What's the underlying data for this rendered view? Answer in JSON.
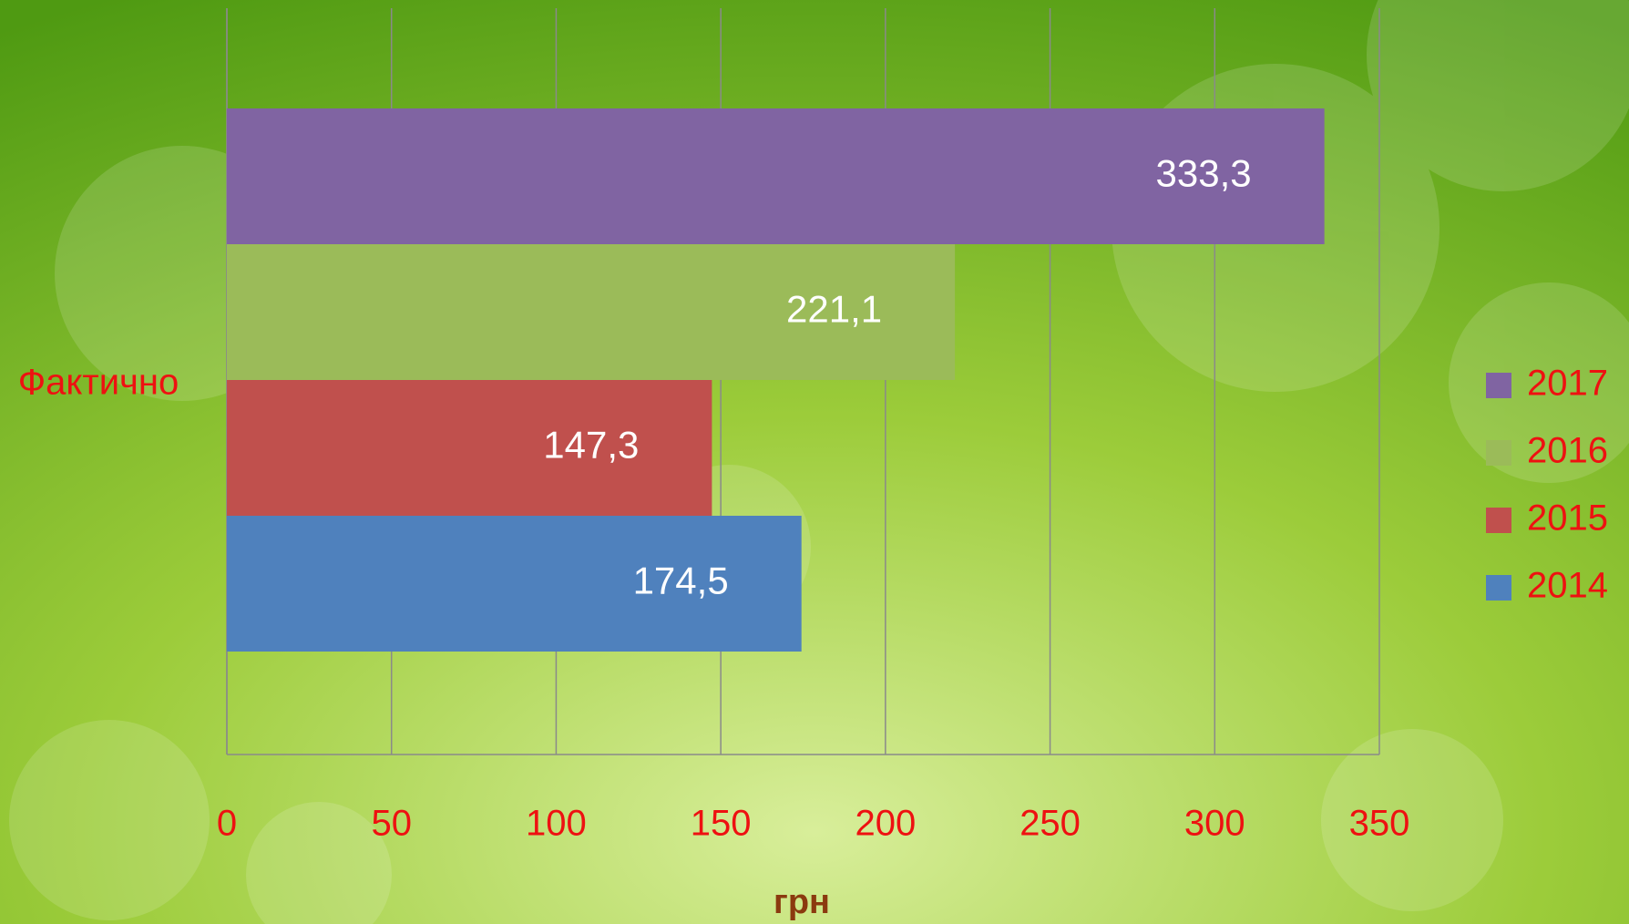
{
  "chart_data": {
    "type": "bar",
    "orientation": "horizontal",
    "categories": [
      "Фактично"
    ],
    "series": [
      {
        "name": "2014",
        "color": "#4f81bd",
        "values": [
          174.5
        ],
        "value_labels": [
          "174,5"
        ]
      },
      {
        "name": "2015",
        "color": "#c0504d",
        "values": [
          147.3
        ],
        "value_labels": [
          "147,3"
        ]
      },
      {
        "name": "2016",
        "color": "#9bbb59",
        "values": [
          221.1
        ],
        "value_labels": [
          "221,1"
        ]
      },
      {
        "name": "2017",
        "color": "#8064a2",
        "values": [
          333.3
        ],
        "value_labels": [
          "333,3"
        ]
      }
    ],
    "xlim": [
      0,
      350
    ],
    "xticks": [
      0,
      50,
      100,
      150,
      200,
      250,
      300,
      350
    ],
    "x_label": "грн",
    "grid": true,
    "legend": "right"
  }
}
